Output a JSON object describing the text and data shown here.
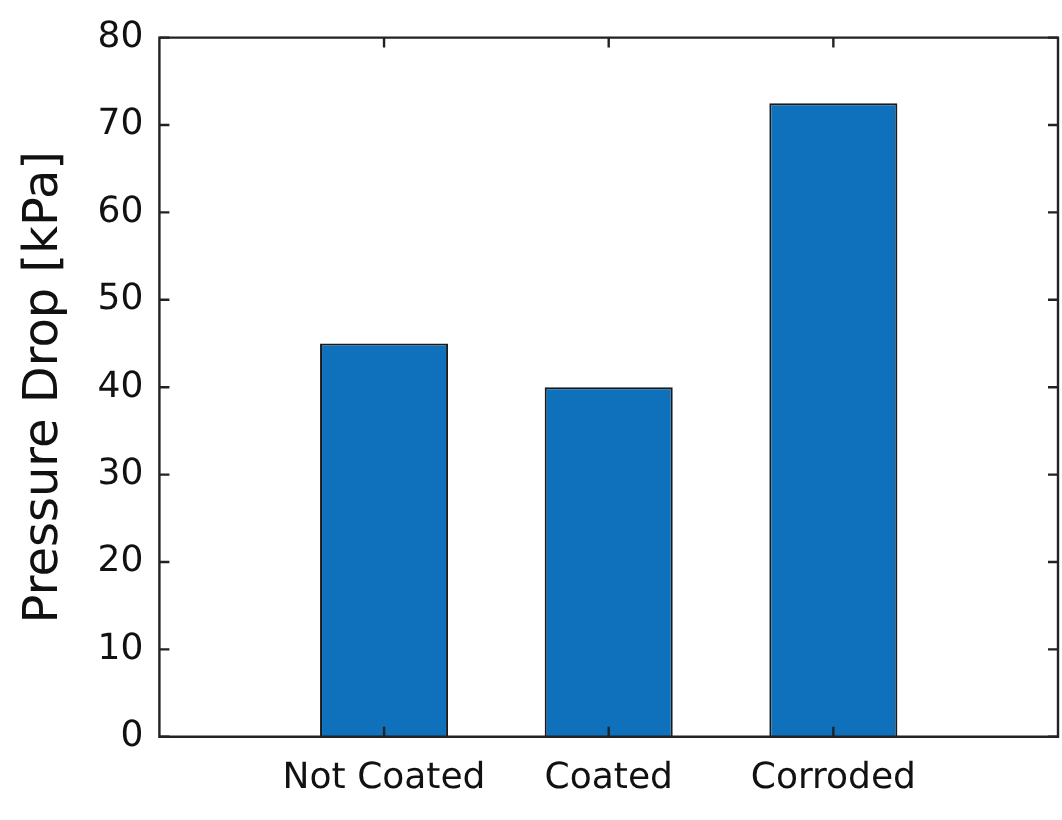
{
  "chart_data": {
    "type": "bar",
    "ylabel": "Pressure Drop [kPa]",
    "categories": [
      "Not Coated",
      "Coated",
      "Corroded"
    ],
    "values": [
      45,
      40,
      72.5
    ],
    "color": "#0f71bb",
    "ylim": [
      0,
      80
    ],
    "yticks": [
      0,
      10,
      20,
      30,
      40,
      50,
      60,
      70,
      80
    ],
    "grid": false,
    "legend": false
  }
}
